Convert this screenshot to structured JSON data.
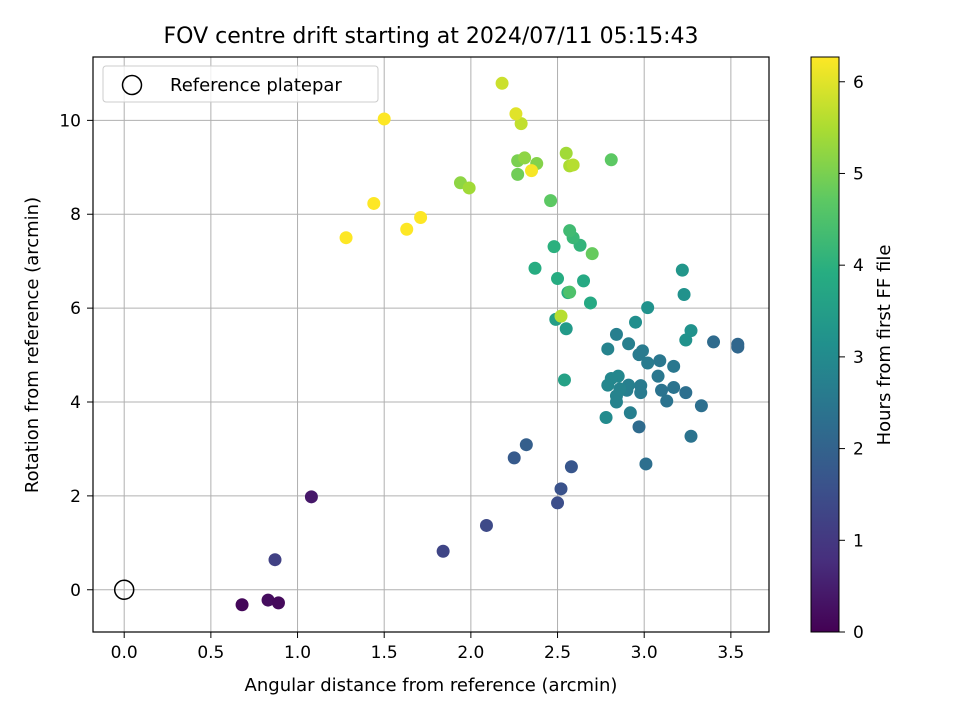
{
  "chart_data": {
    "type": "scatter",
    "title": "FOV centre drift starting at 2024/07/11 05:15:43",
    "xlabel": "Angular distance from reference (arcmin)",
    "ylabel": "Rotation from reference (arcmin)",
    "xlim": [
      -0.18,
      3.72
    ],
    "ylim": [
      -0.9,
      11.35
    ],
    "xticks": [
      "0.0",
      "0.5",
      "1.0",
      "1.5",
      "2.0",
      "2.5",
      "3.0",
      "3.5"
    ],
    "xtick_values": [
      0,
      0.5,
      1.0,
      1.5,
      2.0,
      2.5,
      3.0,
      3.5
    ],
    "yticks": [
      "0",
      "2",
      "4",
      "6",
      "8",
      "10"
    ],
    "ytick_values": [
      0,
      2,
      4,
      6,
      8,
      10
    ],
    "grid": true,
    "legend": {
      "placement": "top-left",
      "entries": [
        "Reference platepar"
      ]
    },
    "reference_point": {
      "x": 0.0,
      "y": 0.0
    },
    "colorbar": {
      "label": "Hours from first FF file",
      "min": 0,
      "max": 6.27,
      "ticks": [
        "0",
        "1",
        "2",
        "3",
        "4",
        "5",
        "6"
      ],
      "tick_values": [
        0,
        1,
        2,
        3,
        4,
        5,
        6
      ],
      "colormap": "viridis"
    },
    "points": [
      [
        0.68,
        -0.32,
        0.1
      ],
      [
        0.83,
        -0.22,
        0.2
      ],
      [
        0.89,
        -0.28,
        0.15
      ],
      [
        1.08,
        1.98,
        0.4
      ],
      [
        0.87,
        0.64,
        1.2
      ],
      [
        1.84,
        0.82,
        1.3
      ],
      [
        2.09,
        1.37,
        1.4
      ],
      [
        2.5,
        1.85,
        1.5
      ],
      [
        2.52,
        2.15,
        1.6
      ],
      [
        2.58,
        2.62,
        1.7
      ],
      [
        2.25,
        2.81,
        1.8
      ],
      [
        2.32,
        3.09,
        1.9
      ],
      [
        2.97,
        3.47,
        2.2
      ],
      [
        3.01,
        2.68,
        2.3
      ],
      [
        3.27,
        3.27,
        2.4
      ],
      [
        3.33,
        3.92,
        2.3
      ],
      [
        3.4,
        5.28,
        2.2
      ],
      [
        3.54,
        5.23,
        2.1
      ],
      [
        3.54,
        5.17,
        2.1
      ],
      [
        3.24,
        4.2,
        2.3
      ],
      [
        3.17,
        4.31,
        2.4
      ],
      [
        3.13,
        4.02,
        2.4
      ],
      [
        3.1,
        4.25,
        2.4
      ],
      [
        3.17,
        4.76,
        2.5
      ],
      [
        3.08,
        4.55,
        2.5
      ],
      [
        3.09,
        4.88,
        2.5
      ],
      [
        3.02,
        4.83,
        2.6
      ],
      [
        2.97,
        5.01,
        2.6
      ],
      [
        2.99,
        5.09,
        2.6
      ],
      [
        2.91,
        5.24,
        2.7
      ],
      [
        2.84,
        5.44,
        2.7
      ],
      [
        2.79,
        5.13,
        2.8
      ],
      [
        2.98,
        4.35,
        2.6
      ],
      [
        2.98,
        4.2,
        2.6
      ],
      [
        2.91,
        4.36,
        2.7
      ],
      [
        2.9,
        4.25,
        2.7
      ],
      [
        2.86,
        4.28,
        2.8
      ],
      [
        2.84,
        4.13,
        2.8
      ],
      [
        2.84,
        4.0,
        2.8
      ],
      [
        2.92,
        3.77,
        2.7
      ],
      [
        2.85,
        4.55,
        2.9
      ],
      [
        2.81,
        4.5,
        2.9
      ],
      [
        2.79,
        4.36,
        2.9
      ],
      [
        2.78,
        3.67,
        3.0
      ],
      [
        2.95,
        5.7,
        3.1
      ],
      [
        3.02,
        6.01,
        3.2
      ],
      [
        3.23,
        6.29,
        3.2
      ],
      [
        3.22,
        6.81,
        3.3
      ],
      [
        3.24,
        5.32,
        3.2
      ],
      [
        3.27,
        5.52,
        3.2
      ],
      [
        2.55,
        5.56,
        3.4
      ],
      [
        2.49,
        5.76,
        3.5
      ],
      [
        2.54,
        4.47,
        3.6
      ],
      [
        2.69,
        6.11,
        3.8
      ],
      [
        2.56,
        6.33,
        3.9
      ],
      [
        2.65,
        6.58,
        3.8
      ],
      [
        2.5,
        6.63,
        3.9
      ],
      [
        2.37,
        6.85,
        3.9
      ],
      [
        2.48,
        7.31,
        4.0
      ],
      [
        2.63,
        7.34,
        4.1
      ],
      [
        2.59,
        7.5,
        4.2
      ],
      [
        2.57,
        7.65,
        4.3
      ],
      [
        2.57,
        6.34,
        4.5
      ],
      [
        2.7,
        7.16,
        4.8
      ],
      [
        2.81,
        9.16,
        4.7
      ],
      [
        2.46,
        8.29,
        4.7
      ],
      [
        2.27,
        8.85,
        4.9
      ],
      [
        2.27,
        9.14,
        5.0
      ],
      [
        2.38,
        9.08,
        5.1
      ],
      [
        2.31,
        9.2,
        5.2
      ],
      [
        2.55,
        9.3,
        5.4
      ],
      [
        2.57,
        9.03,
        5.5
      ],
      [
        2.59,
        9.05,
        5.6
      ],
      [
        1.94,
        8.67,
        5.2
      ],
      [
        1.99,
        8.56,
        5.4
      ],
      [
        2.29,
        9.93,
        5.7
      ],
      [
        2.26,
        10.14,
        6.0
      ],
      [
        2.18,
        10.79,
        5.8
      ],
      [
        2.52,
        5.83,
        5.6
      ],
      [
        2.35,
        8.93,
        6.2
      ],
      [
        1.5,
        10.03,
        6.3
      ],
      [
        1.44,
        8.23,
        6.3
      ],
      [
        1.71,
        7.93,
        6.3
      ],
      [
        1.63,
        7.68,
        6.3
      ],
      [
        1.28,
        7.5,
        6.3
      ]
    ]
  }
}
